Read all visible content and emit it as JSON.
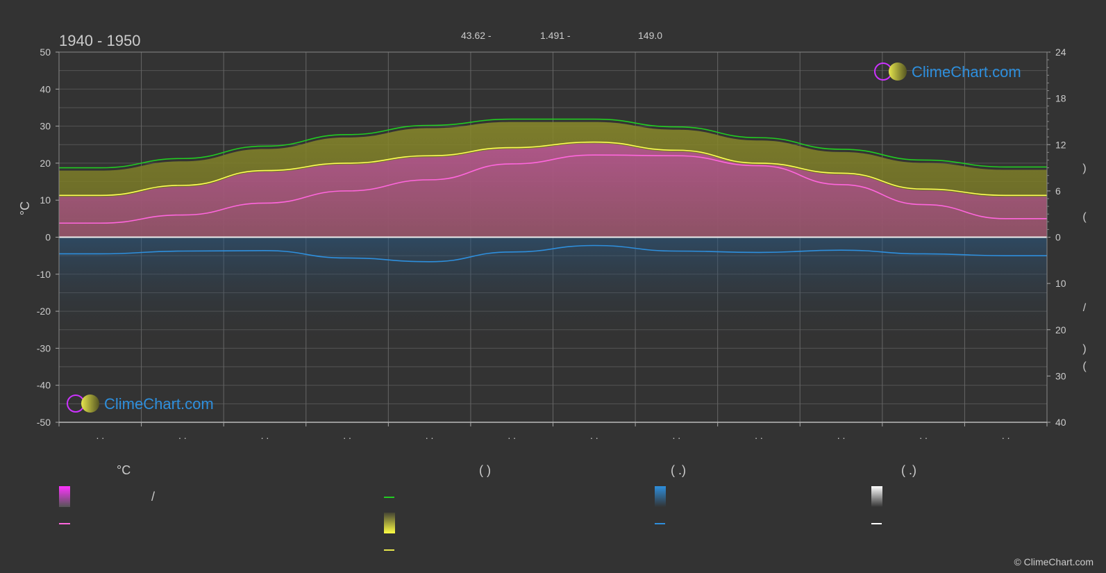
{
  "chart_data": {
    "type": "area",
    "title": "1940 - 1950",
    "header": [
      "43.62 -",
      "1.491 -",
      "149.0"
    ],
    "left_axis": {
      "label": "°C",
      "ticks": [
        50,
        40,
        30,
        20,
        10,
        0,
        -10,
        -20,
        -30,
        -40,
        -50
      ],
      "range": [
        -50,
        50
      ]
    },
    "right_axis_upper": {
      "ticks": [
        24,
        18,
        12,
        6,
        0
      ],
      "range": [
        0,
        24
      ]
    },
    "right_axis_lower": {
      "ticks": [
        10,
        20,
        30,
        40
      ],
      "range": [
        0,
        40
      ]
    },
    "months": [
      ". .",
      ". .",
      ". .",
      ". .",
      ". .",
      ". .",
      ". .",
      ". .",
      ". .",
      ". .",
      ". .",
      ". ."
    ],
    "series": [
      {
        "key": "daylight",
        "color": "#22cc22",
        "values": [
          9.0,
          10.2,
          11.8,
          13.3,
          14.5,
          15.3,
          15.3,
          14.3,
          12.9,
          11.4,
          10.0,
          9.1
        ]
      },
      {
        "key": "sunshine",
        "color": "#e6e64d",
        "values": [
          5.4,
          6.8,
          8.6,
          9.5,
          10.5,
          11.5,
          12.2,
          11.3,
          9.5,
          8.3,
          6.1,
          5.4
        ]
      },
      {
        "key": "temp_max",
        "color": "#ffff55",
        "values": [
          11.3,
          14.0,
          18.0,
          20.0,
          22.0,
          24.2,
          25.7,
          23.5,
          20.0,
          17.3,
          13.0,
          11.3
        ]
      },
      {
        "key": "temp_mean",
        "color": "#ff66dd",
        "values": [
          3.8,
          6.0,
          9.2,
          12.5,
          15.5,
          19.8,
          22.2,
          22.0,
          19.3,
          14.2,
          8.8,
          5.0
        ]
      },
      {
        "key": "rain",
        "color": "#2e8fdd",
        "values": [
          3.6,
          3.0,
          2.9,
          4.5,
          5.3,
          3.2,
          1.8,
          3.0,
          3.3,
          2.8,
          3.6,
          4.0
        ]
      }
    ],
    "legend": {
      "col1_header": "°C",
      "col1_slash": "/",
      "col2_header": "(          )",
      "col3_header": "(    .)",
      "col4_header": "(    .)"
    },
    "watermark": "ClimeChart.com",
    "copyright": "© ClimeChart.com",
    "colors": {
      "background": "#333333",
      "grid": "#555555",
      "text": "#cccccc",
      "brand": "#2e8fdd",
      "logo_ring": "#cc33ff",
      "logo_sun": "#e6e64d"
    }
  }
}
